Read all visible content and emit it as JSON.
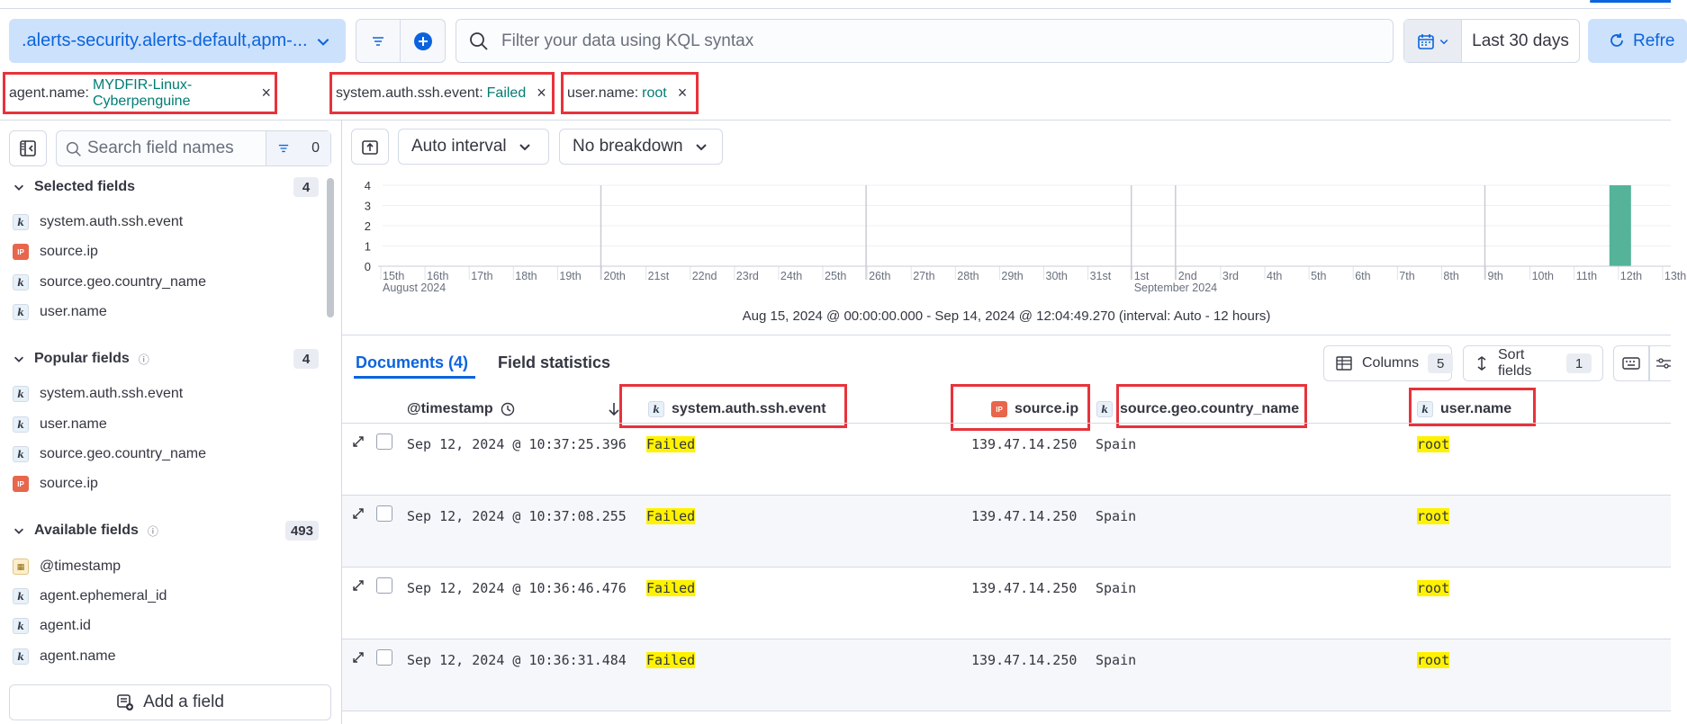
{
  "dataview": {
    "label": ".alerts-security.alerts-default,apm-..."
  },
  "query": {
    "placeholder": "Filter your data using KQL syntax"
  },
  "datepicker": {
    "range": "Last 30 days"
  },
  "refresh": {
    "label": "Refre"
  },
  "filters": [
    {
      "key": "agent.name:",
      "value": "MYDFIR-Linux-Cyberpenguine"
    },
    {
      "key": "system.auth.ssh.event:",
      "value": "Failed"
    },
    {
      "key": "user.name:",
      "value": "root"
    }
  ],
  "sidebar": {
    "search_placeholder": "Search field names",
    "filter_count": "0",
    "selected": {
      "title": "Selected fields",
      "count": "4",
      "items": [
        {
          "name": "system.auth.ssh.event",
          "type": "k"
        },
        {
          "name": "source.ip",
          "type": "ip"
        },
        {
          "name": "source.geo.country_name",
          "type": "k"
        },
        {
          "name": "user.name",
          "type": "k"
        }
      ]
    },
    "popular": {
      "title": "Popular fields",
      "count": "4",
      "items": [
        {
          "name": "system.auth.ssh.event",
          "type": "k"
        },
        {
          "name": "user.name",
          "type": "k"
        },
        {
          "name": "source.geo.country_name",
          "type": "k"
        },
        {
          "name": "source.ip",
          "type": "ip"
        }
      ]
    },
    "available": {
      "title": "Available fields",
      "count": "493",
      "items": [
        {
          "name": "@timestamp",
          "type": "date"
        },
        {
          "name": "agent.ephemeral_id",
          "type": "k"
        },
        {
          "name": "agent.id",
          "type": "k"
        },
        {
          "name": "agent.name",
          "type": "k"
        }
      ]
    },
    "add_field": "Add a field"
  },
  "chart_toolbar": {
    "interval": "Auto interval",
    "breakdown": "No breakdown"
  },
  "chart_data": {
    "type": "bar",
    "categories": [
      "15th",
      "16th",
      "17th",
      "18th",
      "19th",
      "20th",
      "21st",
      "22nd",
      "23rd",
      "24th",
      "25th",
      "26th",
      "27th",
      "28th",
      "29th",
      "30th",
      "31st",
      "1st",
      "2nd",
      "3rd",
      "4th",
      "5th",
      "6th",
      "7th",
      "8th",
      "9th",
      "10th",
      "11th",
      "12th",
      "13th"
    ],
    "values": [
      0,
      0,
      0,
      0,
      0,
      0,
      0,
      0,
      0,
      0,
      0,
      0,
      0,
      0,
      0,
      0,
      0,
      0,
      0,
      0,
      0,
      0,
      0,
      0,
      0,
      0,
      0,
      0,
      4,
      0
    ],
    "ylim": [
      0,
      4
    ],
    "yticks": [
      "0",
      "1",
      "2",
      "3",
      "4"
    ],
    "month_labels": [
      "August 2024",
      "September 2024"
    ],
    "bar_color": "#54b399"
  },
  "timerange": "Aug 15, 2024 @ 00:00:00.000 - Sep 14, 2024 @ 12:04:49.270 (interval: Auto - 12 hours)",
  "tabs": {
    "documents": "Documents (4)",
    "stats": "Field statistics"
  },
  "table_toolbar": {
    "columns": "Columns",
    "columns_count": "5",
    "sort": "Sort fields",
    "sort_count": "1"
  },
  "table": {
    "headers": {
      "timestamp": "@timestamp",
      "ssh": "system.auth.ssh.event",
      "ip": "source.ip",
      "country": "source.geo.country_name",
      "user": "user.name"
    },
    "rows": [
      {
        "timestamp": "Sep 12, 2024 @ 10:37:25.396",
        "ssh": "Failed",
        "ip": "139.47.14.250",
        "country": "Spain",
        "user": "root"
      },
      {
        "timestamp": "Sep 12, 2024 @ 10:37:08.255",
        "ssh": "Failed",
        "ip": "139.47.14.250",
        "country": "Spain",
        "user": "root"
      },
      {
        "timestamp": "Sep 12, 2024 @ 10:36:46.476",
        "ssh": "Failed",
        "ip": "139.47.14.250",
        "country": "Spain",
        "user": "root"
      },
      {
        "timestamp": "Sep 12, 2024 @ 10:36:31.484",
        "ssh": "Failed",
        "ip": "139.47.14.250",
        "country": "Spain",
        "user": "root"
      }
    ]
  }
}
